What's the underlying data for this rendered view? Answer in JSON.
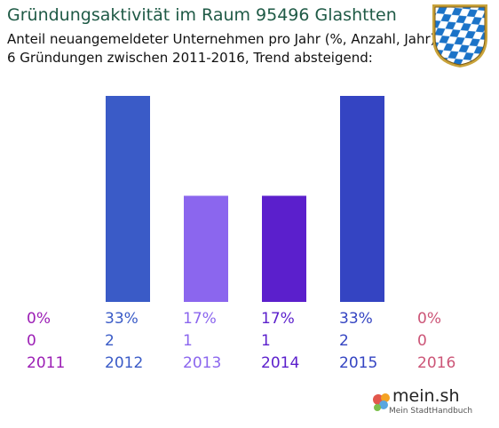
{
  "header": {
    "title": "Gründungsaktivität im Raum 95496 Glashtten",
    "subtitle_line1": "Anteil neuangemeldeter Unternehmen pro Jahr (%, Anzahl, Jahr)",
    "subtitle_line2": "6 Gründungen zwischen 2011-2016, Trend absteigend:"
  },
  "coat_of_arms": {
    "icon": "bavaria-coat-of-arms-icon",
    "colors": [
      "#1b73c8",
      "#ffffff"
    ]
  },
  "brand": {
    "name": "mein.sh",
    "tagline": "Mein StadtHandbuch",
    "icon": "map-pin-icon"
  },
  "chart_data": {
    "type": "bar",
    "categories": [
      "2011",
      "2012",
      "2013",
      "2014",
      "2015",
      "2016"
    ],
    "series": [
      {
        "values": [
          0,
          33,
          17,
          17,
          33,
          0
        ]
      }
    ],
    "counts": [
      0,
      2,
      1,
      1,
      2,
      0
    ],
    "percent_labels": [
      "0%",
      "33%",
      "17%",
      "17%",
      "33%",
      "0%"
    ],
    "count_labels": [
      "0",
      "2",
      "1",
      "1",
      "2",
      "0"
    ],
    "colors": [
      "#9c1fb5",
      "#3a5bc7",
      "#8b66ee",
      "#5b1fcc",
      "#3444c2",
      "#cc5577"
    ],
    "ylim": [
      0,
      33
    ],
    "grid": false,
    "legend": "none"
  }
}
